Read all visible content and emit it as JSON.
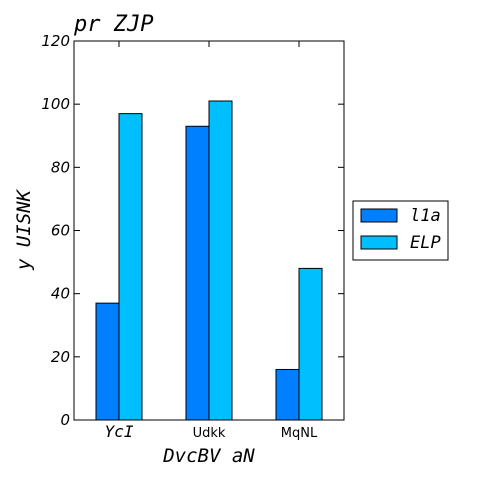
{
  "chart_data": {
    "type": "bar",
    "title": "pr ZJP",
    "xlabel": "DvcBV aN",
    "ylabel": "y UISNK",
    "categories": [
      "YcI",
      "Udkk",
      "MqNL"
    ],
    "series": [
      {
        "name": "l1a",
        "values": [
          37,
          93,
          16
        ],
        "color": "#0080ff"
      },
      {
        "name": "ELP",
        "values": [
          97,
          101,
          48
        ],
        "color": "#00bfff"
      }
    ],
    "ylim": [
      0,
      120
    ],
    "yticks": [
      0,
      20,
      40,
      60,
      80,
      100,
      120
    ],
    "grid": false,
    "legend_position": "right"
  }
}
